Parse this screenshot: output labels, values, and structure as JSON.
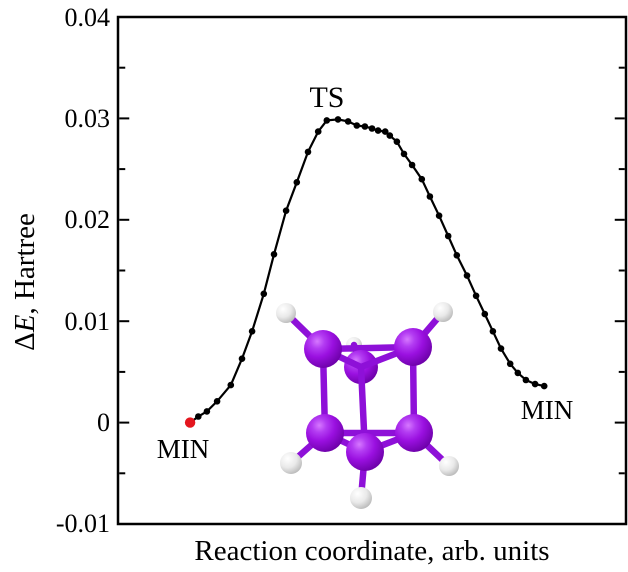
{
  "axes": {
    "xlabel": "Reaction coordinate, arb. units",
    "ylabel_delta": "Δ",
    "ylabel_E": "E",
    "ylabel_rest": ", Hartree"
  },
  "annotations": {
    "ts": {
      "label": "TS",
      "color": "#000000"
    },
    "min_left": {
      "label": "MIN",
      "color": "#e4161e"
    },
    "min_right": {
      "label": "MIN",
      "color": "#000000"
    }
  },
  "colors": {
    "curve": "#000000",
    "marker": "#000000",
    "min_marker_red": "#e4161e",
    "frame": "#000000",
    "background": "#ffffff"
  },
  "molecule": {
    "description": "Ball-and-stick cluster inset: six purple atoms in a distorted cube/prism arrangement, each bonded to one small white hydrogen atom",
    "purple_atom_count": 6,
    "hydrogen_count": 6,
    "atom_color": "#9a10e0",
    "bond_color": "#8e10d8",
    "hydrogen_color": "#e8e8e8"
  },
  "chart_data": {
    "type": "line",
    "title": "",
    "xlabel": "Reaction coordinate, arb. units",
    "ylabel": "ΔE, Hartree",
    "ylim": [
      -0.01,
      0.04
    ],
    "x_units": "arbitrary (no x ticks)",
    "grid": false,
    "yticks": [
      -0.01,
      0,
      0.01,
      0.02,
      0.03,
      0.04
    ],
    "ytick_labels": [
      "-0.01",
      "0",
      "0.01",
      "0.02",
      "0.03",
      "0.04"
    ],
    "yminor_step": 0.005,
    "marker": "circle",
    "series": [
      {
        "name": "reaction energy profile",
        "color": "#000000",
        "points": [
          [
            0.142,
            0.0
          ],
          [
            0.158,
            0.0006
          ],
          [
            0.175,
            0.0011
          ],
          [
            0.195,
            0.0021
          ],
          [
            0.222,
            0.0037
          ],
          [
            0.244,
            0.0063
          ],
          [
            0.264,
            0.009
          ],
          [
            0.287,
            0.0127
          ],
          [
            0.307,
            0.0166
          ],
          [
            0.331,
            0.0209
          ],
          [
            0.352,
            0.0237
          ],
          [
            0.374,
            0.0267
          ],
          [
            0.394,
            0.0287
          ],
          [
            0.411,
            0.0298
          ],
          [
            0.433,
            0.0299
          ],
          [
            0.453,
            0.0297
          ],
          [
            0.47,
            0.0293
          ],
          [
            0.486,
            0.0292
          ],
          [
            0.5,
            0.029
          ],
          [
            0.512,
            0.0288
          ],
          [
            0.526,
            0.0287
          ],
          [
            0.535,
            0.0283
          ],
          [
            0.549,
            0.0277
          ],
          [
            0.563,
            0.0265
          ],
          [
            0.579,
            0.0254
          ],
          [
            0.598,
            0.024
          ],
          [
            0.614,
            0.0223
          ],
          [
            0.632,
            0.0204
          ],
          [
            0.65,
            0.0184
          ],
          [
            0.667,
            0.0165
          ],
          [
            0.687,
            0.0145
          ],
          [
            0.705,
            0.0125
          ],
          [
            0.722,
            0.0107
          ],
          [
            0.738,
            0.009
          ],
          [
            0.754,
            0.0073
          ],
          [
            0.772,
            0.0058
          ],
          [
            0.787,
            0.0049
          ],
          [
            0.803,
            0.0042
          ],
          [
            0.821,
            0.0038
          ],
          [
            0.839,
            0.0036
          ]
        ]
      }
    ],
    "special_points": {
      "start_minimum": {
        "x": 0.142,
        "y": 0.0,
        "label": "MIN",
        "color": "#e4161e"
      },
      "transition_state": {
        "x": 0.433,
        "y": 0.0299,
        "label": "TS",
        "color": "#000000"
      },
      "end_minimum": {
        "x": 0.839,
        "y": 0.0036,
        "label": "MIN",
        "color": "#000000"
      }
    }
  }
}
